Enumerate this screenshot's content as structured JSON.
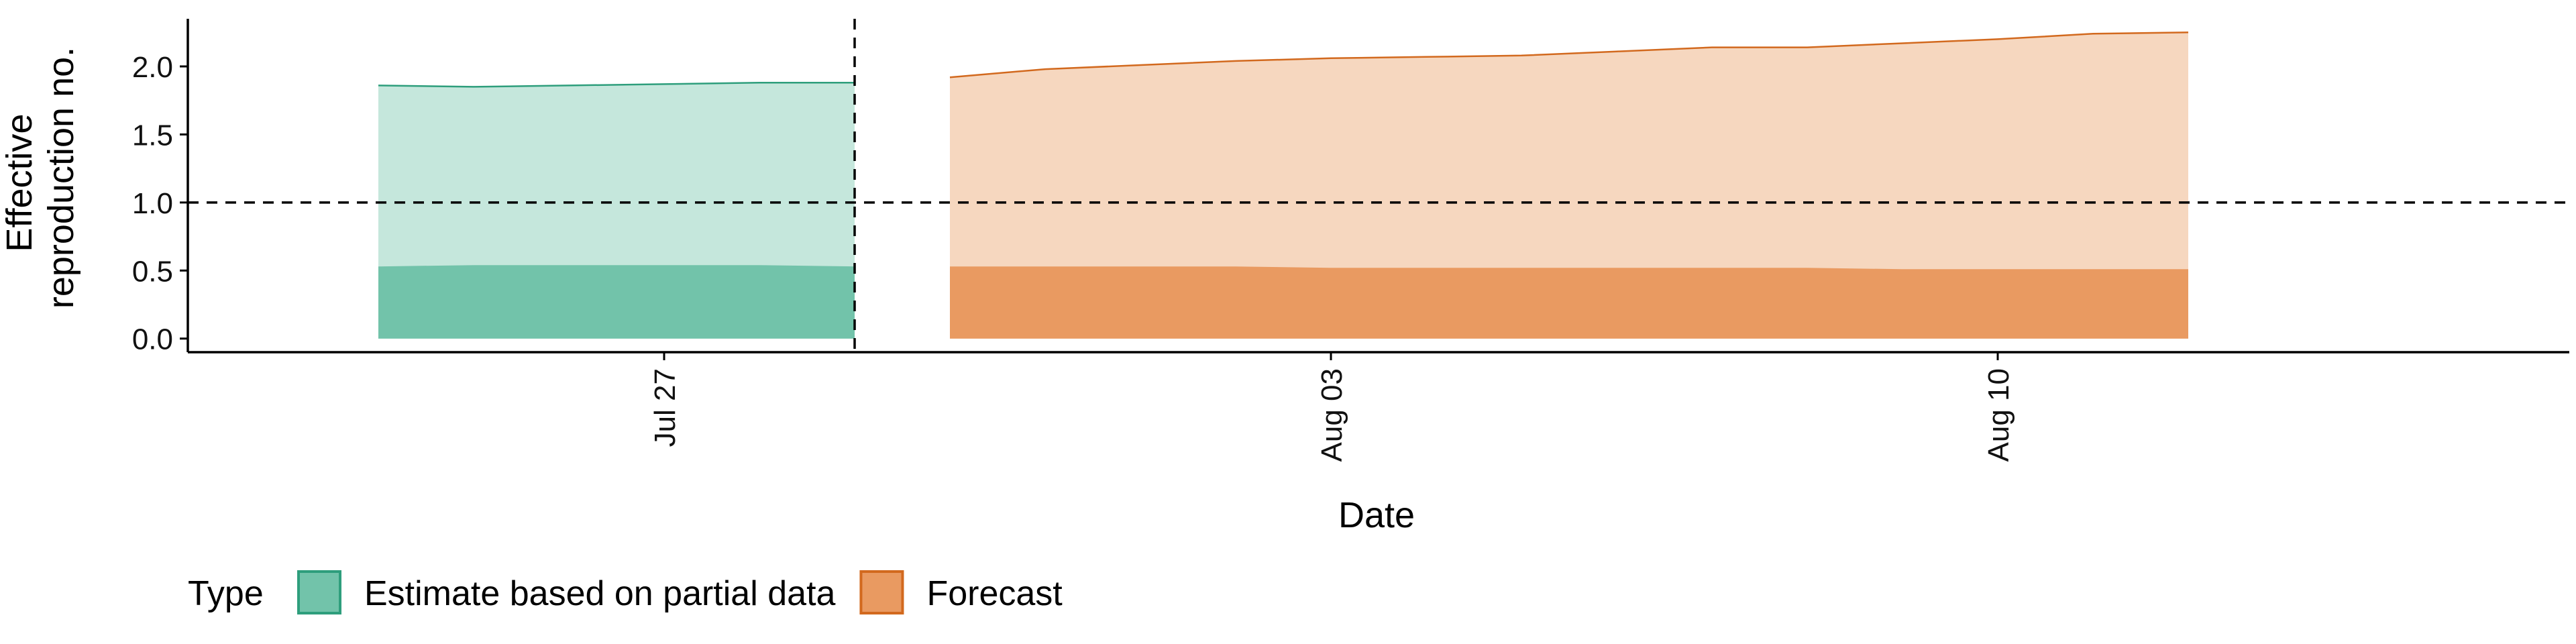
{
  "chart_data": {
    "type": "area",
    "xlabel": "Date",
    "ylabel": [
      "Effective",
      "reproduction no."
    ],
    "x_axis": {
      "type": "date",
      "range": [
        "2020-07-22",
        "2020-08-16"
      ],
      "ticks": [
        {
          "date": "2020-07-27",
          "label": "Jul 27"
        },
        {
          "date": "2020-08-03",
          "label": "Aug 03"
        },
        {
          "date": "2020-08-10",
          "label": "Aug 10"
        }
      ]
    },
    "y_axis": {
      "range": [
        -0.1,
        2.35
      ],
      "ticks": [
        {
          "value": 0.0,
          "label": "0.0"
        },
        {
          "value": 0.5,
          "label": "0.5"
        },
        {
          "value": 1.0,
          "label": "1.0"
        },
        {
          "value": 1.5,
          "label": "1.5"
        },
        {
          "value": 2.0,
          "label": "2.0"
        }
      ]
    },
    "grid": false,
    "reference_lines": {
      "horizontal_y": 1.0,
      "vertical_date": "2020-07-29"
    },
    "legend": {
      "position": "bottom-left",
      "title": "Type",
      "entries": [
        {
          "label": "Estimate based on partial data",
          "series": "estimate"
        },
        {
          "label": "Forecast",
          "series": "forecast"
        }
      ]
    },
    "series": [
      {
        "key": "estimate",
        "name": "Estimate based on partial data",
        "fill_dark": "#72c3aa",
        "fill_light": "#c5e7dc",
        "edge": "#2e9e7c",
        "dates": [
          "2020-07-24",
          "2020-07-25",
          "2020-07-26",
          "2020-07-27",
          "2020-07-28",
          "2020-07-29"
        ],
        "inner_lower": [
          0.0,
          0.0,
          0.0,
          0.0,
          0.0,
          0.0
        ],
        "inner_upper": [
          0.53,
          0.54,
          0.54,
          0.54,
          0.54,
          0.53
        ],
        "outer_lower": [
          0.0,
          0.0,
          0.0,
          0.0,
          0.0,
          0.0
        ],
        "outer_upper": [
          1.86,
          1.85,
          1.86,
          1.87,
          1.88,
          1.88
        ]
      },
      {
        "key": "forecast",
        "name": "Forecast",
        "fill_dark": "#e99a61",
        "fill_light": "#f6d7bf",
        "edge": "#d2691e",
        "dates": [
          "2020-07-30",
          "2020-07-31",
          "2020-08-01",
          "2020-08-02",
          "2020-08-03",
          "2020-08-04",
          "2020-08-05",
          "2020-08-06",
          "2020-08-07",
          "2020-08-08",
          "2020-08-09",
          "2020-08-10",
          "2020-08-11",
          "2020-08-12"
        ],
        "inner_lower": [
          0.0,
          0.0,
          0.0,
          0.0,
          0.0,
          0.0,
          0.0,
          0.0,
          0.0,
          0.0,
          0.0,
          0.0,
          0.0,
          0.0
        ],
        "inner_upper": [
          0.53,
          0.53,
          0.53,
          0.53,
          0.52,
          0.52,
          0.52,
          0.52,
          0.52,
          0.52,
          0.51,
          0.51,
          0.51,
          0.51
        ],
        "outer_lower": [
          0.0,
          0.0,
          0.0,
          0.0,
          0.0,
          0.0,
          0.0,
          0.0,
          0.0,
          0.0,
          0.0,
          0.0,
          0.0,
          0.0
        ],
        "outer_upper": [
          1.92,
          1.98,
          2.01,
          2.04,
          2.06,
          2.07,
          2.08,
          2.11,
          2.14,
          2.14,
          2.17,
          2.2,
          2.24,
          2.25
        ]
      }
    ]
  }
}
